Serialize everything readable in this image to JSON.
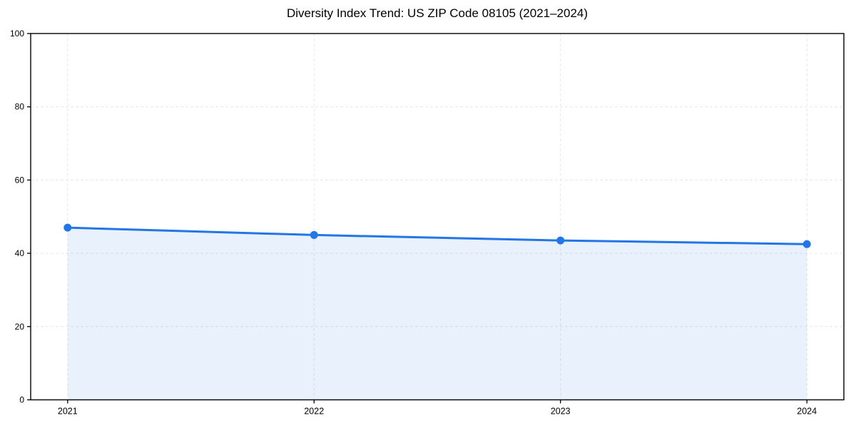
{
  "page": {
    "background": "#ffffff"
  },
  "chart_data": {
    "type": "area",
    "title": "Diversity Index Trend: US ZIP Code 08105 (2021–2024)",
    "x": [
      2021,
      2022,
      2023,
      2024
    ],
    "xtick_labels": [
      "2021",
      "2022",
      "2023",
      "2024"
    ],
    "series": [
      {
        "name": "Diversity Index",
        "values": [
          47,
          45,
          43.5,
          42.5
        ]
      }
    ],
    "xlabel": "",
    "ylabel": "",
    "xlim": [
      2020.85,
      2024.15
    ],
    "ylim": [
      0,
      100
    ],
    "yticks": [
      0,
      20,
      40,
      60,
      80,
      100
    ],
    "ytick_labels": [
      "0",
      "20",
      "40",
      "60",
      "80",
      "100"
    ],
    "grid": {
      "visible": true,
      "style": "dashed",
      "color": "#e7e7e7"
    },
    "legend": {
      "visible": false
    },
    "marker": {
      "shape": "circle",
      "radius": 5.5
    },
    "line_width": 3,
    "colors": {
      "line": "#2276e6",
      "area_fill": "#2276e6",
      "area_fill_opacity": 0.1,
      "spine": "#000000",
      "tick_label": "#000000",
      "title": "#000000"
    }
  }
}
